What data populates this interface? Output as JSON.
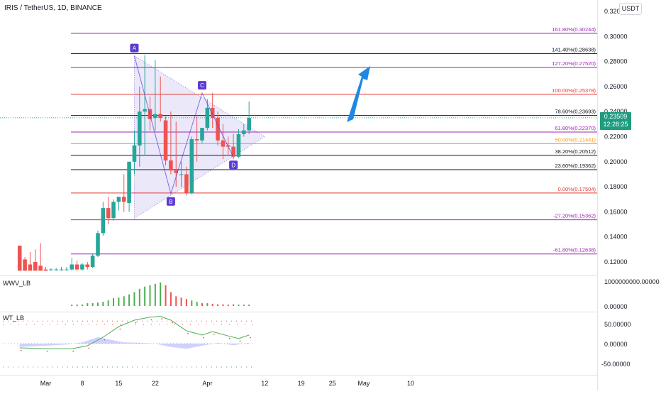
{
  "header": {
    "title": "IRIS / TetherUS, 1D, BINANCE",
    "currency_button": "USDT"
  },
  "price_badge": {
    "price": "0.23509",
    "countdown": "12:28:25"
  },
  "colors": {
    "up": "#26a69a",
    "down": "#ef5350",
    "triangle_fill": "#c5bcf2",
    "arrow": "#1e88e5",
    "pattern_label": "#5b3bd1",
    "fib_purple": "#9c27b0",
    "fib_red": "#e53935",
    "fib_orange": "#ff9800",
    "fib_black": "#131722",
    "fib_brown": "#b06d10"
  },
  "price_axis": {
    "ticks": [
      "0.32000",
      "0.30000",
      "0.28000",
      "0.26000",
      "0.24000",
      "0.22000",
      "0.20000",
      "0.18000",
      "0.16000",
      "0.14000",
      "0.12000"
    ]
  },
  "fib_levels": [
    {
      "label": "161.80%(0.30244)",
      "price": 0.30244,
      "color": "#9c27b0"
    },
    {
      "label": "141.40%(0.28638)",
      "price": 0.28638,
      "color": "#131722"
    },
    {
      "label": "127.20%(0.27520)",
      "price": 0.2752,
      "color": "#9c27b0"
    },
    {
      "label": "100.00%(0.25378)",
      "price": 0.25378,
      "color": "#e53935"
    },
    {
      "label": "78.60%(0.23693)",
      "price": 0.23693,
      "color": "#131722"
    },
    {
      "label": "61.80%(0.22370)",
      "price": 0.2237,
      "color": "#9c27b0"
    },
    {
      "label": "50.00%(0.21441)",
      "price": 0.21441,
      "color": "#ff9800"
    },
    {
      "label": "38.20%(0.20512)",
      "price": 0.20512,
      "color": "#131722"
    },
    {
      "label": "23.60%(0.19362)",
      "price": 0.19362,
      "color": "#131722"
    },
    {
      "label": "0.00%(0.17504)",
      "price": 0.17504,
      "color": "#e53935"
    },
    {
      "label": "-27.20%(0.15362)",
      "price": 0.15362,
      "color": "#9c27b0"
    },
    {
      "label": "-61.80%(0.12638)",
      "price": 0.12638,
      "color": "#9c27b0"
    }
  ],
  "pattern_points": [
    {
      "label": "A",
      "day": 17,
      "price": 0.2845
    },
    {
      "label": "B",
      "day": 24,
      "price": 0.1745
    },
    {
      "label": "C",
      "day": 30,
      "price": 0.2548
    },
    {
      "label": "D",
      "day": 36,
      "price": 0.2037
    }
  ],
  "wwv_pane": {
    "label": "WWV_LB",
    "ticks": [
      "1000000000.00000",
      "0.00000"
    ]
  },
  "wt_pane": {
    "label": "WT_LB",
    "ticks": [
      "50.00000",
      "0.00000",
      "-50.00000"
    ]
  },
  "time_axis": {
    "labels": [
      {
        "text": "Mar",
        "day": 0
      },
      {
        "text": "8",
        "day": 7
      },
      {
        "text": "15",
        "day": 14
      },
      {
        "text": "22",
        "day": 21
      },
      {
        "text": "Apr",
        "day": 31
      },
      {
        "text": "12",
        "day": 42
      },
      {
        "text": "19",
        "day": 49
      },
      {
        "text": "25",
        "day": 55
      },
      {
        "text": "May",
        "day": 61
      },
      {
        "text": "10",
        "day": 70
      }
    ]
  },
  "candles": [
    {
      "day": -5,
      "o": 0.133,
      "h": 0.133,
      "c": 0.113,
      "l": 0.113
    },
    {
      "day": -4,
      "o": 0.122,
      "h": 0.124,
      "c": 0.113,
      "l": 0.113
    },
    {
      "day": -3,
      "o": 0.118,
      "h": 0.128,
      "c": 0.113,
      "l": 0.113
    },
    {
      "day": -2,
      "o": 0.12,
      "h": 0.13,
      "c": 0.113,
      "l": 0.113
    },
    {
      "day": -1,
      "o": 0.117,
      "h": 0.135,
      "c": 0.113,
      "l": 0.113
    },
    {
      "day": 0,
      "o": 0.114,
      "h": 0.116,
      "c": 0.113,
      "l": 0.113
    },
    {
      "day": 1,
      "o": 0.114,
      "h": 0.115,
      "c": 0.114,
      "l": 0.113
    },
    {
      "day": 2,
      "o": 0.114,
      "h": 0.115,
      "c": 0.114,
      "l": 0.113
    },
    {
      "day": 3,
      "o": 0.114,
      "h": 0.116,
      "c": 0.114,
      "l": 0.113
    },
    {
      "day": 4,
      "o": 0.114,
      "h": 0.116,
      "c": 0.114,
      "l": 0.113
    },
    {
      "day": 5,
      "o": 0.114,
      "h": 0.123,
      "c": 0.118,
      "l": 0.113
    },
    {
      "day": 6,
      "o": 0.118,
      "h": 0.121,
      "c": 0.114,
      "l": 0.113
    },
    {
      "day": 7,
      "o": 0.114,
      "h": 0.119,
      "c": 0.118,
      "l": 0.113
    },
    {
      "day": 8,
      "o": 0.118,
      "h": 0.12,
      "c": 0.116,
      "l": 0.114
    },
    {
      "day": 9,
      "o": 0.116,
      "h": 0.127,
      "c": 0.125,
      "l": 0.115
    },
    {
      "day": 10,
      "o": 0.125,
      "h": 0.145,
      "c": 0.143,
      "l": 0.124
    },
    {
      "day": 11,
      "o": 0.143,
      "h": 0.168,
      "c": 0.163,
      "l": 0.141
    },
    {
      "day": 12,
      "o": 0.163,
      "h": 0.172,
      "c": 0.155,
      "l": 0.15
    },
    {
      "day": 13,
      "o": 0.155,
      "h": 0.17,
      "c": 0.168,
      "l": 0.153
    },
    {
      "day": 14,
      "o": 0.168,
      "h": 0.172,
      "c": 0.172,
      "l": 0.161
    },
    {
      "day": 15,
      "o": 0.172,
      "h": 0.19,
      "c": 0.168,
      "l": 0.16
    },
    {
      "day": 16,
      "o": 0.167,
      "h": 0.2,
      "c": 0.2,
      "l": 0.16
    },
    {
      "day": 17,
      "o": 0.2,
      "h": 0.225,
      "c": 0.213,
      "l": 0.19
    },
    {
      "day": 18,
      "o": 0.213,
      "h": 0.26,
      "c": 0.24,
      "l": 0.196
    },
    {
      "day": 19,
      "o": 0.24,
      "h": 0.285,
      "c": 0.242,
      "l": 0.205
    },
    {
      "day": 20,
      "o": 0.242,
      "h": 0.252,
      "c": 0.234,
      "l": 0.225
    },
    {
      "day": 21,
      "o": 0.235,
      "h": 0.281,
      "c": 0.238,
      "l": 0.225
    },
    {
      "day": 22,
      "o": 0.238,
      "h": 0.268,
      "c": 0.235,
      "l": 0.232
    },
    {
      "day": 23,
      "o": 0.233,
      "h": 0.236,
      "c": 0.201,
      "l": 0.197
    },
    {
      "day": 24,
      "o": 0.201,
      "h": 0.24,
      "c": 0.193,
      "l": 0.19
    },
    {
      "day": 25,
      "o": 0.193,
      "h": 0.232,
      "c": 0.191,
      "l": 0.18
    },
    {
      "day": 26,
      "o": 0.19,
      "h": 0.2,
      "c": 0.19,
      "l": 0.18
    },
    {
      "day": 27,
      "o": 0.19,
      "h": 0.196,
      "c": 0.175,
      "l": 0.173
    },
    {
      "day": 28,
      "o": 0.175,
      "h": 0.22,
      "c": 0.218,
      "l": 0.174
    },
    {
      "day": 29,
      "o": 0.218,
      "h": 0.236,
      "c": 0.217,
      "l": 0.2
    },
    {
      "day": 30,
      "o": 0.217,
      "h": 0.227,
      "c": 0.227,
      "l": 0.215
    },
    {
      "day": 31,
      "o": 0.227,
      "h": 0.25,
      "c": 0.243,
      "l": 0.225
    },
    {
      "day": 32,
      "o": 0.243,
      "h": 0.255,
      "c": 0.235,
      "l": 0.227
    },
    {
      "day": 33,
      "o": 0.235,
      "h": 0.24,
      "c": 0.217,
      "l": 0.213
    },
    {
      "day": 34,
      "o": 0.217,
      "h": 0.23,
      "c": 0.212,
      "l": 0.202
    },
    {
      "day": 35,
      "o": 0.213,
      "h": 0.22,
      "c": 0.212,
      "l": 0.205
    },
    {
      "day": 36,
      "o": 0.212,
      "h": 0.222,
      "c": 0.204,
      "l": 0.202
    },
    {
      "day": 37,
      "o": 0.204,
      "h": 0.226,
      "c": 0.222,
      "l": 0.203
    },
    {
      "day": 38,
      "o": 0.222,
      "h": 0.23,
      "c": 0.225,
      "l": 0.22
    },
    {
      "day": 39,
      "o": 0.225,
      "h": 0.248,
      "c": 0.235,
      "l": 0.222
    }
  ],
  "wwv_bars": [
    {
      "day": 5,
      "v": 0.05,
      "dir": "up"
    },
    {
      "day": 6,
      "v": 0.05,
      "dir": "down"
    },
    {
      "day": 7,
      "v": 0.05,
      "dir": "up"
    },
    {
      "day": 8,
      "v": 0.1,
      "dir": "up"
    },
    {
      "day": 9,
      "v": 0.1,
      "dir": "up"
    },
    {
      "day": 10,
      "v": 0.12,
      "dir": "up"
    },
    {
      "day": 11,
      "v": 0.15,
      "dir": "up"
    },
    {
      "day": 12,
      "v": 0.2,
      "dir": "up"
    },
    {
      "day": 13,
      "v": 0.28,
      "dir": "up"
    },
    {
      "day": 14,
      "v": 0.3,
      "dir": "up"
    },
    {
      "day": 15,
      "v": 0.35,
      "dir": "up"
    },
    {
      "day": 16,
      "v": 0.42,
      "dir": "up"
    },
    {
      "day": 17,
      "v": 0.5,
      "dir": "up"
    },
    {
      "day": 18,
      "v": 0.62,
      "dir": "up"
    },
    {
      "day": 19,
      "v": 0.7,
      "dir": "up"
    },
    {
      "day": 20,
      "v": 0.75,
      "dir": "up"
    },
    {
      "day": 21,
      "v": 0.8,
      "dir": "up"
    },
    {
      "day": 22,
      "v": 0.85,
      "dir": "up"
    },
    {
      "day": 23,
      "v": 0.75,
      "dir": "down"
    },
    {
      "day": 24,
      "v": 0.5,
      "dir": "down"
    },
    {
      "day": 25,
      "v": 0.35,
      "dir": "down"
    },
    {
      "day": 26,
      "v": 0.3,
      "dir": "down"
    },
    {
      "day": 27,
      "v": 0.25,
      "dir": "down"
    },
    {
      "day": 28,
      "v": 0.2,
      "dir": "up"
    },
    {
      "day": 29,
      "v": 0.15,
      "dir": "up"
    },
    {
      "day": 30,
      "v": 0.1,
      "dir": "down"
    },
    {
      "day": 31,
      "v": 0.1,
      "dir": "up"
    },
    {
      "day": 32,
      "v": 0.08,
      "dir": "down"
    },
    {
      "day": 33,
      "v": 0.06,
      "dir": "down"
    },
    {
      "day": 34,
      "v": 0.06,
      "dir": "down"
    },
    {
      "day": 35,
      "v": 0.05,
      "dir": "down"
    },
    {
      "day": 36,
      "v": 0.06,
      "dir": "down"
    },
    {
      "day": 37,
      "v": 0.05,
      "dir": "up"
    },
    {
      "day": 38,
      "v": 0.05,
      "dir": "up"
    },
    {
      "day": 39,
      "v": 0.05,
      "dir": "up"
    }
  ],
  "wt_series": {
    "wt1": [
      {
        "day": -5,
        "v": -10
      },
      {
        "day": 0,
        "v": -12
      },
      {
        "day": 5,
        "v": -12
      },
      {
        "day": 8,
        "v": -5
      },
      {
        "day": 11,
        "v": 15
      },
      {
        "day": 14,
        "v": 40
      },
      {
        "day": 17,
        "v": 55
      },
      {
        "day": 20,
        "v": 62
      },
      {
        "day": 22,
        "v": 64
      },
      {
        "day": 24,
        "v": 55
      },
      {
        "day": 27,
        "v": 30
      },
      {
        "day": 30,
        "v": 20
      },
      {
        "day": 32,
        "v": 28
      },
      {
        "day": 35,
        "v": 18
      },
      {
        "day": 37,
        "v": 12
      },
      {
        "day": 39,
        "v": 20
      }
    ],
    "area": [
      {
        "day": -5,
        "v": -8
      },
      {
        "day": 0,
        "v": -5
      },
      {
        "day": 4,
        "v": -2
      },
      {
        "day": 7,
        "v": 3
      },
      {
        "day": 10,
        "v": 15
      },
      {
        "day": 12,
        "v": 10
      },
      {
        "day": 15,
        "v": 3
      },
      {
        "day": 18,
        "v": 2
      },
      {
        "day": 21,
        "v": 0
      },
      {
        "day": 24,
        "v": -8
      },
      {
        "day": 27,
        "v": -12
      },
      {
        "day": 30,
        "v": -5
      },
      {
        "day": 33,
        "v": 2
      },
      {
        "day": 36,
        "v": -4
      },
      {
        "day": 39,
        "v": 2
      }
    ]
  }
}
